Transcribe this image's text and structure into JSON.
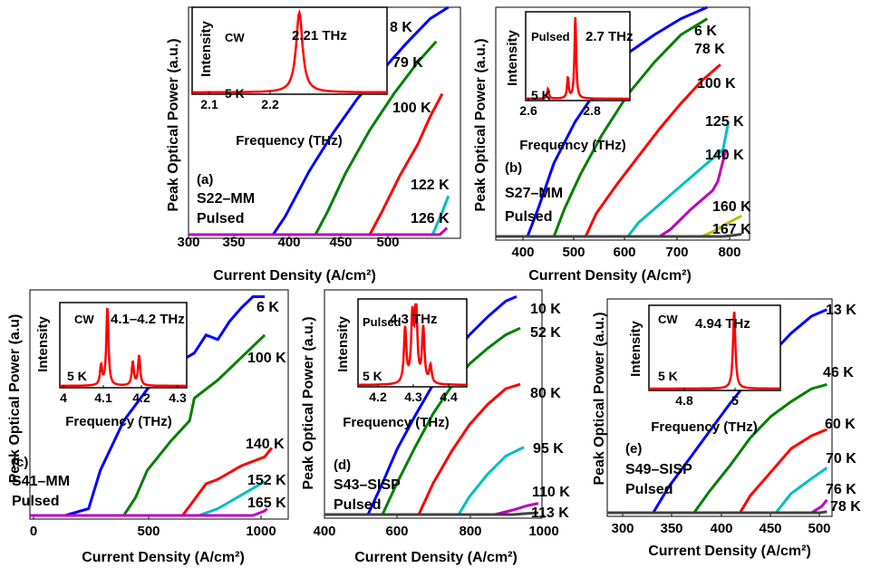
{
  "figure": {
    "panels": [
      {
        "id": "a",
        "tag": "(a)",
        "sample": "S22–MM",
        "mode": "Pulsed",
        "xlabel": "Current Density (A/cm²)",
        "ylabel": "Peak Optical Power (a.u.)",
        "xticks": [
          "300",
          "350",
          "400",
          "450",
          "500"
        ],
        "inset": {
          "mode": "CW",
          "temp": "5 K",
          "freq": "2.21 THz",
          "xticks": [
            "2.1",
            "2.2"
          ],
          "xlabel": "Frequency (THz)",
          "ylabel": "Intensity"
        }
      },
      {
        "id": "b",
        "tag": "(b)",
        "sample": "S27–MM",
        "mode": "Pulsed",
        "xlabel": "Current Density (A/cm²)",
        "ylabel": "Peak Optical Power (a.u.)",
        "xticks": [
          "400",
          "500",
          "600",
          "700",
          "800"
        ],
        "inset": {
          "mode": "Pulsed",
          "temp": "5 K",
          "freq": "2.7 THz",
          "xticks": [
            "2.6",
            "2.8"
          ],
          "xlabel": "Frequency (THz)",
          "ylabel": "Intensity"
        }
      },
      {
        "id": "c",
        "tag": "(c)",
        "sample": "S41–MM",
        "mode": "Pulsed",
        "xlabel": "Current Density (A/cm²)",
        "ylabel": "Peak Optical Power (a.u)",
        "xticks": [
          "0",
          "500",
          "1000"
        ],
        "inset": {
          "mode": "CW",
          "temp": "5 K",
          "freq": "4.1–4.2 THz",
          "xticks": [
            "4",
            "4.1",
            "4.2",
            "4.3"
          ],
          "xlabel": "Frequency (THz)",
          "ylabel": "Intensity"
        }
      },
      {
        "id": "d",
        "tag": "(d)",
        "sample": "S43–SISP",
        "mode": "Pulsed",
        "xlabel": "Current Density (A/cm²)",
        "ylabel": "Peak Optical Power (a.u.)",
        "xticks": [
          "400",
          "600",
          "800",
          "1000"
        ],
        "inset": {
          "mode": "Pulsed",
          "temp": "5 K",
          "freq": "4.3 THz",
          "xticks": [
            "4.2",
            "4.3",
            "4.4"
          ],
          "xlabel": "Frequency (THz)",
          "ylabel": "Intensity"
        }
      },
      {
        "id": "e",
        "tag": "(e)",
        "sample": "S49–SISP",
        "mode": "Pulsed",
        "xlabel": "Current Density (A/cm²)",
        "ylabel": "Peak Optical Power (a.u.)",
        "xticks": [
          "300",
          "350",
          "400",
          "450",
          "500"
        ],
        "inset": {
          "mode": "CW",
          "temp": "5 K",
          "freq": "4.94 THz",
          "xticks": [
            "4.8",
            "5"
          ],
          "xlabel": "Frequency (THz)",
          "ylabel": "Intensity"
        }
      }
    ]
  },
  "chart_data": [
    {
      "type": "line",
      "panel": "a",
      "xlabel": "Current Density (A/cm²)",
      "ylabel": "Peak Optical Power (a.u.)",
      "xlim": [
        300,
        525
      ],
      "ylim": [
        0,
        1
      ],
      "series": [
        {
          "name": "8 K",
          "color": "#0000ff",
          "x": [
            300,
            370,
            380,
            400,
            420,
            440,
            460,
            480,
            500,
            515
          ],
          "y": [
            0,
            0,
            0.08,
            0.28,
            0.45,
            0.6,
            0.72,
            0.84,
            0.95,
            1.0
          ]
        },
        {
          "name": "79 K",
          "color": "#008000",
          "x": [
            300,
            405,
            415,
            430,
            450,
            470,
            490,
            505
          ],
          "y": [
            0,
            0,
            0.1,
            0.27,
            0.46,
            0.62,
            0.76,
            0.85
          ]
        },
        {
          "name": "100 K",
          "color": "#ff0000",
          "x": [
            300,
            450,
            460,
            475,
            490,
            500,
            510
          ],
          "y": [
            0,
            0,
            0.1,
            0.26,
            0.4,
            0.52,
            0.62
          ]
        },
        {
          "name": "122 K",
          "color": "#00bfbf",
          "x": [
            300,
            502,
            506,
            510,
            515
          ],
          "y": [
            0,
            0,
            0.05,
            0.1,
            0.17
          ]
        },
        {
          "name": "126 K",
          "color": "#bf00bf",
          "x": [
            300,
            508,
            512,
            514
          ],
          "y": [
            0,
            0,
            0.02,
            0.03
          ]
        }
      ],
      "inset": {
        "xlim": [
          2.1,
          2.3
        ],
        "peaks": [
          {
            "x": 2.21,
            "y": 1.0,
            "w": 0.004
          }
        ]
      }
    },
    {
      "type": "line",
      "panel": "b",
      "xlabel": "Current Density (A/cm²)",
      "ylabel": "Peak Optical Power (a.u.)",
      "xlim": [
        350,
        830
      ],
      "ylim": [
        0,
        1
      ],
      "series": [
        {
          "name": "6 K",
          "color": "#0000ff",
          "x": [
            350,
            410,
            430,
            460,
            500,
            550,
            600,
            650,
            700,
            750
          ],
          "y": [
            0,
            0,
            0.12,
            0.32,
            0.5,
            0.67,
            0.8,
            0.88,
            0.95,
            1.0
          ]
        },
        {
          "name": "78 K",
          "color": "#008000",
          "x": [
            350,
            460,
            480,
            510,
            550,
            600,
            650,
            700,
            750
          ],
          "y": [
            0,
            0,
            0.12,
            0.27,
            0.44,
            0.62,
            0.76,
            0.88,
            0.95
          ]
        },
        {
          "name": "100 K",
          "color": "#ff0000",
          "x": [
            350,
            520,
            540,
            580,
            620,
            660,
            700,
            740,
            775
          ],
          "y": [
            0,
            0,
            0.1,
            0.23,
            0.35,
            0.47,
            0.58,
            0.68,
            0.75
          ]
        },
        {
          "name": "125 K",
          "color": "#00bfbf",
          "x": [
            350,
            600,
            620,
            660,
            700,
            740,
            780,
            790
          ],
          "y": [
            0,
            0,
            0.06,
            0.14,
            0.22,
            0.3,
            0.38,
            0.5
          ]
        },
        {
          "name": "140 K",
          "color": "#bf00bf",
          "x": [
            350,
            660,
            680,
            720,
            760,
            770,
            780,
            785
          ],
          "y": [
            0,
            0,
            0.03,
            0.12,
            0.2,
            0.24,
            0.33,
            0.38
          ]
        },
        {
          "name": "160 K",
          "color": "#bfbf00",
          "x": [
            350,
            740,
            760,
            790,
            815
          ],
          "y": [
            0,
            0,
            0.02,
            0.06,
            0.09
          ]
        },
        {
          "name": "167 K",
          "color": "#404040",
          "x": [
            350,
            780,
            800,
            815
          ],
          "y": [
            0,
            0,
            0.005,
            0.01
          ]
        }
      ],
      "inset": {
        "xlim": [
          2.5,
          2.92
        ],
        "peaks": [
          {
            "x": 2.59,
            "y": 0.12,
            "w": 0.004
          },
          {
            "x": 2.67,
            "y": 0.25,
            "w": 0.004
          },
          {
            "x": 2.7,
            "y": 1.0,
            "w": 0.004
          }
        ]
      }
    },
    {
      "type": "line",
      "panel": "c",
      "xlabel": "Current Density (A/cm²)",
      "ylabel": "Peak Optical Power (a.u)",
      "xlim": [
        0,
        1100
      ],
      "ylim": [
        0,
        1
      ],
      "series": [
        {
          "name": "6 K",
          "color": "#0000ff",
          "x": [
            0,
            150,
            250,
            300,
            400,
            500,
            600,
            700,
            750,
            800,
            850,
            900,
            950,
            1000
          ],
          "y": [
            0,
            0,
            0.03,
            0.2,
            0.42,
            0.56,
            0.66,
            0.72,
            0.8,
            0.78,
            0.86,
            0.92,
            0.97,
            0.97
          ]
        },
        {
          "name": "100 K",
          "color": "#008000",
          "x": [
            0,
            400,
            450,
            500,
            600,
            680,
            700,
            750,
            800,
            900,
            1000
          ],
          "y": [
            0,
            0,
            0.08,
            0.2,
            0.33,
            0.42,
            0.52,
            0.56,
            0.6,
            0.7,
            0.8
          ]
        },
        {
          "name": "140 K",
          "color": "#ff0000",
          "x": [
            0,
            650,
            700,
            750,
            800,
            900,
            1000,
            1030
          ],
          "y": [
            0,
            0,
            0.07,
            0.14,
            0.16,
            0.22,
            0.26,
            0.3
          ]
        },
        {
          "name": "152 K",
          "color": "#00bfbf",
          "x": [
            0,
            720,
            800,
            900,
            1000
          ],
          "y": [
            0,
            0,
            0.03,
            0.09,
            0.15
          ]
        },
        {
          "name": "165 K",
          "color": "#bf00bf",
          "x": [
            0,
            950,
            1000,
            1010
          ],
          "y": [
            0,
            0,
            0.02,
            0.03
          ]
        }
      ],
      "inset": {
        "xlim": [
          3.95,
          4.35
        ],
        "peaks": [
          {
            "x": 4.1,
            "y": 1.0,
            "w": 0.004
          },
          {
            "x": 4.08,
            "y": 0.25,
            "w": 0.004
          },
          {
            "x": 4.18,
            "y": 0.3,
            "w": 0.004
          },
          {
            "x": 4.2,
            "y": 0.38,
            "w": 0.004
          }
        ]
      }
    },
    {
      "type": "line",
      "panel": "d",
      "xlabel": "Current Density (A/cm²)",
      "ylabel": "Peak Optical Power (a.u.)",
      "xlim": [
        400,
        1000
      ],
      "ylim": [
        0,
        1
      ],
      "series": [
        {
          "name": "10 K",
          "color": "#0000ff",
          "x": [
            400,
            520,
            560,
            600,
            650,
            700,
            750,
            800,
            850,
            900,
            930
          ],
          "y": [
            0,
            0,
            0.14,
            0.29,
            0.44,
            0.58,
            0.7,
            0.8,
            0.88,
            0.95,
            0.97
          ]
        },
        {
          "name": "52 K",
          "color": "#008000",
          "x": [
            400,
            560,
            600,
            650,
            700,
            750,
            800,
            850,
            900,
            940
          ],
          "y": [
            0,
            0,
            0.14,
            0.3,
            0.45,
            0.57,
            0.67,
            0.74,
            0.8,
            0.83
          ]
        },
        {
          "name": "80 K",
          "color": "#ff0000",
          "x": [
            400,
            660,
            700,
            750,
            800,
            850,
            900,
            940
          ],
          "y": [
            0,
            0,
            0.14,
            0.28,
            0.4,
            0.49,
            0.56,
            0.58
          ]
        },
        {
          "name": "95 K",
          "color": "#00bfbf",
          "x": [
            400,
            770,
            800,
            850,
            900,
            950
          ],
          "y": [
            0,
            0,
            0.08,
            0.18,
            0.26,
            0.3
          ]
        },
        {
          "name": "110 K",
          "color": "#bf00bf",
          "x": [
            400,
            870,
            920,
            960,
            990
          ],
          "y": [
            0,
            0,
            0.02,
            0.04,
            0.05
          ]
        },
        {
          "name": "113 K",
          "color": "#404040",
          "x": [
            400,
            920,
            960,
            990
          ],
          "y": [
            0,
            0,
            0.005,
            0.008
          ]
        }
      ],
      "inset": {
        "xlim": [
          4.15,
          4.45
        ],
        "peaks": [
          {
            "x": 4.28,
            "y": 0.68,
            "w": 0.004
          },
          {
            "x": 4.3,
            "y": 0.8,
            "w": 0.004
          },
          {
            "x": 4.31,
            "y": 1.0,
            "w": 0.004
          },
          {
            "x": 4.33,
            "y": 0.68,
            "w": 0.004
          },
          {
            "x": 4.35,
            "y": 0.22,
            "w": 0.004
          }
        ]
      }
    },
    {
      "type": "line",
      "panel": "e",
      "xlabel": "Current Density (A/cm²)",
      "ylabel": "Peak Optical Power (a.u.)",
      "xlim": [
        300,
        520
      ],
      "ylim": [
        0,
        1
      ],
      "series": [
        {
          "name": "13 K",
          "color": "#0000ff",
          "x": [
            300,
            345,
            360,
            380,
            400,
            420,
            440,
            460,
            480,
            500,
            515
          ],
          "y": [
            0,
            0,
            0.12,
            0.25,
            0.38,
            0.51,
            0.63,
            0.74,
            0.84,
            0.92,
            0.95
          ]
        },
        {
          "name": "46 K",
          "color": "#008000",
          "x": [
            300,
            385,
            400,
            420,
            440,
            460,
            480,
            500,
            515
          ],
          "y": [
            0,
            0,
            0.1,
            0.22,
            0.35,
            0.45,
            0.52,
            0.58,
            0.6
          ]
        },
        {
          "name": "60 K",
          "color": "#ff0000",
          "x": [
            300,
            430,
            440,
            460,
            480,
            500,
            515
          ],
          "y": [
            0,
            0,
            0.08,
            0.19,
            0.3,
            0.36,
            0.39
          ]
        },
        {
          "name": "70 K",
          "color": "#00bfbf",
          "x": [
            300,
            465,
            480,
            500,
            515
          ],
          "y": [
            0,
            0,
            0.09,
            0.16,
            0.21
          ]
        },
        {
          "name": "76 K",
          "color": "#bf00bf",
          "x": [
            300,
            500,
            510,
            515
          ],
          "y": [
            0,
            0,
            0.03,
            0.06
          ]
        },
        {
          "name": "78 K",
          "color": "#404040",
          "x": [
            300,
            508,
            515
          ],
          "y": [
            0,
            0,
            0.005
          ]
        }
      ],
      "inset": {
        "xlim": [
          4.7,
          5.07
        ],
        "peaks": [
          {
            "x": 4.94,
            "y": 1.0,
            "w": 0.004
          }
        ]
      }
    }
  ]
}
